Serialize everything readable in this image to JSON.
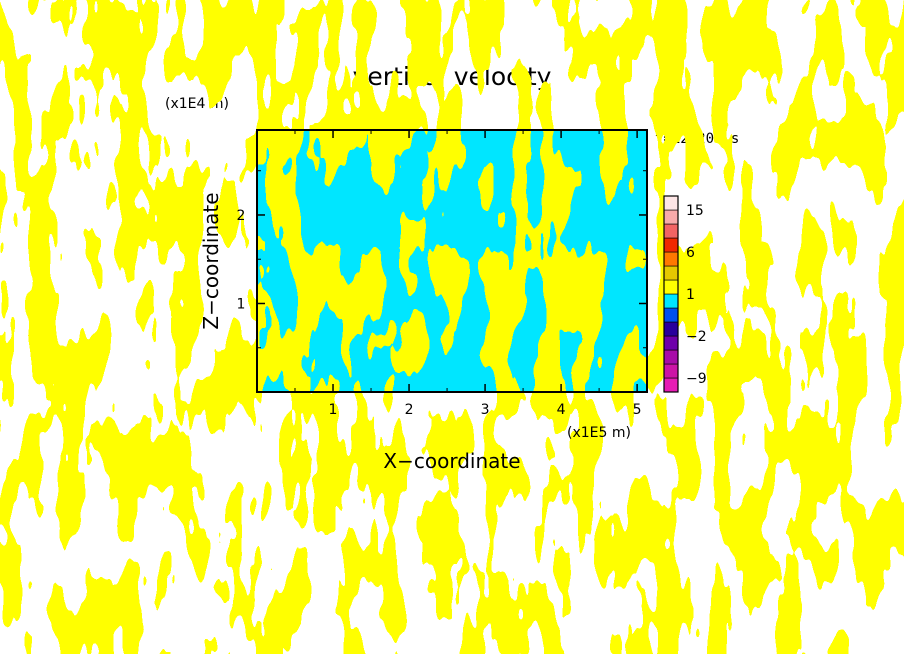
{
  "chart_data": {
    "type": "heatmap",
    "title": "vertical velocity",
    "xlabel": "X−coordinate",
    "ylabel": "Z−coordinate",
    "x_unit": "(x1E5 m)",
    "y_unit": "(x1E4 m)",
    "time_label": "t=124200 s",
    "xlim": [
      0,
      5.13
    ],
    "ylim": [
      0,
      2.96
    ],
    "x_ticks": [
      {
        "value": 1,
        "label": "1"
      },
      {
        "value": 2,
        "label": "2"
      },
      {
        "value": 3,
        "label": "3"
      },
      {
        "value": 4,
        "label": "4"
      },
      {
        "value": 5,
        "label": "5"
      }
    ],
    "y_ticks": [
      {
        "value": 1,
        "label": "1"
      },
      {
        "value": 2,
        "label": "2"
      }
    ],
    "field_colors": {
      "negative": "#00e6ff",
      "positive": "#ffff00"
    },
    "colorbar": {
      "levels": [
        -12,
        -9,
        -6,
        -4,
        -2,
        -1,
        0,
        1,
        2,
        4,
        6,
        9,
        12,
        15,
        18
      ],
      "colors": [
        "#e61cb4",
        "#cc14a6",
        "#a80ca8",
        "#6e00aa",
        "#28009c",
        "#0050f0",
        "#00e6ff",
        "#ffff00",
        "#e6c800",
        "#ff7800",
        "#f02800",
        "#f26464",
        "#f7aaaa",
        "#fde6e6"
      ],
      "labels": [
        {
          "value": 15,
          "text": "15"
        },
        {
          "value": 6,
          "text": "6"
        },
        {
          "value": 1,
          "text": "1"
        },
        {
          "value": -2,
          "text": "−2"
        },
        {
          "value": -9,
          "text": "−9"
        }
      ]
    }
  }
}
